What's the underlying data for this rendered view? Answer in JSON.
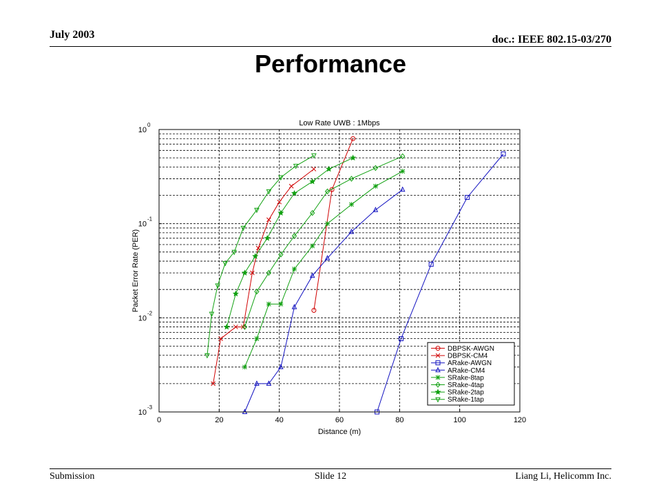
{
  "slide": {
    "date": "July 2003",
    "doc_id": "doc.: IEEE 802.15-03/270",
    "title": "Performance",
    "footer_left": "Submission",
    "footer_center": "Slide 12",
    "footer_right": "Liang Li, Helicomm Inc."
  },
  "chart_data": {
    "type": "line",
    "title": "Low Rate UWB : 1Mbps",
    "xlabel": "Distance (m)",
    "ylabel": "Packet Error Rate (PER)",
    "xlim": [
      0,
      120
    ],
    "ylim": [
      0.001,
      1
    ],
    "yscale": "log",
    "xticks": [
      0,
      20,
      40,
      60,
      80,
      100,
      120
    ],
    "yticks": [
      {
        "base": "10",
        "exp": "0",
        "value": 1
      },
      {
        "base": "10",
        "exp": "-1",
        "value": 0.1
      },
      {
        "base": "10",
        "exp": "-2",
        "value": 0.01
      },
      {
        "base": "10",
        "exp": "-3",
        "value": 0.001
      }
    ],
    "grid": true,
    "legend_position": "bottom-right",
    "series": [
      {
        "name": "DBPSK-AWGN",
        "color": "#d00000",
        "marker": "circle",
        "x": [
          51.5,
          57.5,
          64.5
        ],
        "y": [
          0.012,
          0.23,
          0.8
        ]
      },
      {
        "name": "DBPSK-CM4",
        "color": "#d00000",
        "marker": "x",
        "x": [
          18,
          20.5,
          25.5,
          28,
          31,
          33,
          36.5,
          40,
          44,
          51.5
        ],
        "y": [
          0.002,
          0.006,
          0.008,
          0.008,
          0.03,
          0.055,
          0.11,
          0.17,
          0.25,
          0.38
        ]
      },
      {
        "name": "ARake-AWGN",
        "color": "#1010c0",
        "marker": "square",
        "x": [
          72.5,
          80.5,
          90.5,
          102.5,
          114.5
        ],
        "y": [
          0.001,
          0.006,
          0.037,
          0.19,
          0.55
        ]
      },
      {
        "name": "ARake-CM4",
        "color": "#1010c0",
        "marker": "triangle-up",
        "x": [
          28.5,
          32.5,
          36.5,
          40.5,
          45,
          51,
          56,
          64,
          72,
          81
        ],
        "y": [
          0.001,
          0.002,
          0.002,
          0.003,
          0.013,
          0.028,
          0.043,
          0.082,
          0.14,
          0.23
        ]
      },
      {
        "name": "SRake-8tap",
        "color": "#10a010",
        "marker": "star",
        "x": [
          28.5,
          32.5,
          36.5,
          40.5,
          45,
          51,
          56,
          64,
          72,
          81
        ],
        "y": [
          0.003,
          0.006,
          0.014,
          0.014,
          0.033,
          0.058,
          0.1,
          0.16,
          0.25,
          0.36
        ]
      },
      {
        "name": "SRake-4tap",
        "color": "#10a010",
        "marker": "diamond",
        "x": [
          28.5,
          32.5,
          36.5,
          40.5,
          45,
          51,
          56,
          64,
          72,
          81
        ],
        "y": [
          0.008,
          0.019,
          0.03,
          0.047,
          0.074,
          0.13,
          0.22,
          0.3,
          0.39,
          0.52
        ]
      },
      {
        "name": "SRake-2tap",
        "color": "#10a010",
        "marker": "star6",
        "x": [
          22.5,
          25.5,
          28.5,
          32,
          36,
          40.5,
          45,
          51,
          56.5,
          64.5
        ],
        "y": [
          0.008,
          0.018,
          0.03,
          0.045,
          0.07,
          0.13,
          0.21,
          0.28,
          0.38,
          0.5
        ]
      },
      {
        "name": "SRake-1tap",
        "color": "#10a010",
        "marker": "triangle-down",
        "x": [
          16,
          17.5,
          19.5,
          22,
          25,
          28,
          32.5,
          36.5,
          40.5,
          45.5,
          51.5
        ],
        "y": [
          0.004,
          0.011,
          0.022,
          0.038,
          0.05,
          0.09,
          0.14,
          0.22,
          0.31,
          0.41,
          0.53
        ]
      }
    ]
  }
}
